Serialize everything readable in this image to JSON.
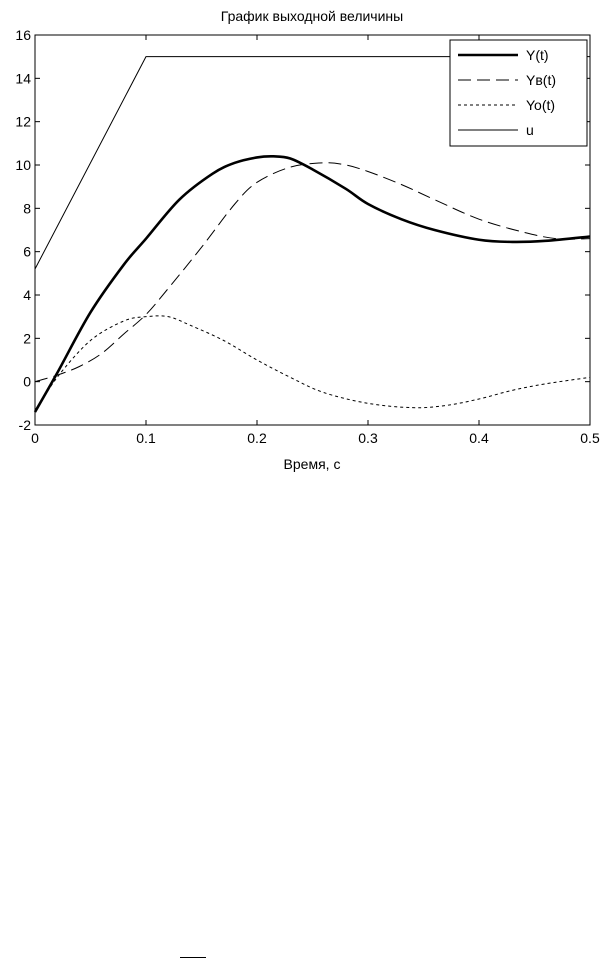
{
  "chart_data": {
    "type": "line",
    "title": "График выходной величины",
    "xlabel": "Время, с",
    "ylabel": "",
    "xlim": [
      0,
      0.5
    ],
    "ylim": [
      -2,
      16
    ],
    "xticks": [
      0,
      0.1,
      0.2,
      0.3,
      0.4,
      0.5
    ],
    "xtick_labels": [
      "0",
      "0.1",
      "0.2",
      "0.3",
      "0.4",
      "0.5"
    ],
    "yticks": [
      -2,
      0,
      2,
      4,
      6,
      8,
      10,
      12,
      14,
      16
    ],
    "ytick_labels": [
      "-2",
      "0",
      "2",
      "4",
      "6",
      "8",
      "10",
      "12",
      "14",
      "16"
    ],
    "grid": false,
    "legend_position": "top-right",
    "colors": {
      "lines": "#000000",
      "background": "#ffffff"
    },
    "series": [
      {
        "name": "Y(t)",
        "style": "solid-thick",
        "x": [
          0,
          0.02,
          0.05,
          0.08,
          0.1,
          0.13,
          0.16,
          0.18,
          0.2,
          0.215,
          0.23,
          0.25,
          0.28,
          0.3,
          0.33,
          0.36,
          0.4,
          0.43,
          0.46,
          0.5
        ],
        "y": [
          -1.4,
          0.4,
          3.2,
          5.4,
          6.6,
          8.4,
          9.6,
          10.1,
          10.35,
          10.4,
          10.3,
          9.8,
          8.9,
          8.2,
          7.5,
          7.0,
          6.55,
          6.45,
          6.5,
          6.7
        ]
      },
      {
        "name": "Yв(t)",
        "style": "long-dash",
        "x": [
          0,
          0.02,
          0.04,
          0.06,
          0.08,
          0.1,
          0.12,
          0.15,
          0.18,
          0.2,
          0.23,
          0.26,
          0.28,
          0.3,
          0.33,
          0.36,
          0.4,
          0.44,
          0.47,
          0.5
        ],
        "y": [
          0,
          0.3,
          0.7,
          1.3,
          2.2,
          3.1,
          4.3,
          6.2,
          8.2,
          9.2,
          9.9,
          10.1,
          10.0,
          9.7,
          9.1,
          8.4,
          7.5,
          6.9,
          6.6,
          6.6
        ]
      },
      {
        "name": "Yo(t)",
        "style": "short-dash",
        "x": [
          0,
          0.02,
          0.05,
          0.08,
          0.1,
          0.12,
          0.14,
          0.17,
          0.2,
          0.23,
          0.26,
          0.3,
          0.34,
          0.37,
          0.4,
          0.43,
          0.46,
          0.5
        ],
        "y": [
          -1.4,
          0.2,
          1.9,
          2.8,
          3.0,
          3.0,
          2.6,
          1.9,
          1.0,
          0.2,
          -0.5,
          -1.0,
          -1.2,
          -1.1,
          -0.8,
          -0.4,
          -0.1,
          0.2
        ]
      },
      {
        "name": "u",
        "style": "solid-thin",
        "x": [
          0,
          0.1,
          0.5
        ],
        "y": [
          5.2,
          15,
          15
        ]
      }
    ]
  }
}
